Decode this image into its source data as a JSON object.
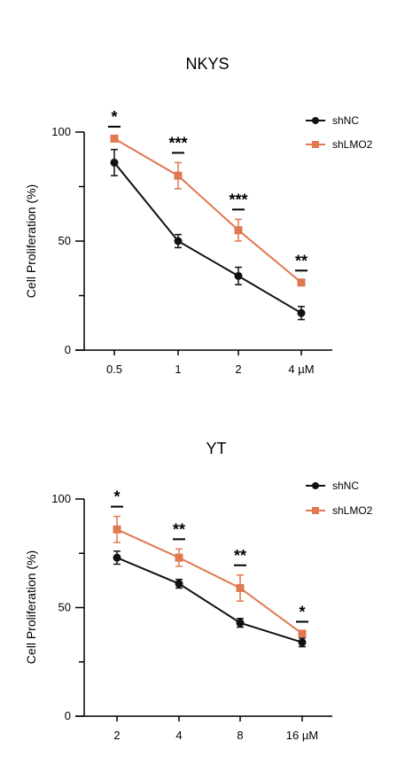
{
  "chart_data": [
    {
      "type": "line",
      "title": "NKYS",
      "ylabel": "Cell Proliferation (%)",
      "xlabel": "",
      "categories": [
        "0.5",
        "1",
        "2",
        "4 µM"
      ],
      "ylim": [
        0,
        100
      ],
      "yticks": [
        "0",
        "50",
        "100"
      ],
      "legend_position": "top-right",
      "grid": false,
      "series": [
        {
          "name": "shNC",
          "color": "#111111",
          "marker": "circle",
          "values": [
            86,
            50,
            34,
            17
          ],
          "errors": [
            6,
            3,
            4,
            3
          ]
        },
        {
          "name": "shLMO2",
          "color": "#e07850",
          "marker": "square",
          "values": [
            97,
            80,
            55,
            31
          ],
          "errors": [
            1,
            6,
            5,
            1
          ]
        }
      ],
      "significance": [
        "*",
        "***",
        "***",
        "**"
      ]
    },
    {
      "type": "line",
      "title": "YT",
      "ylabel": "Cell Proliferation (%)",
      "xlabel": "",
      "categories": [
        "2",
        "4",
        "8",
        "16 µM"
      ],
      "ylim": [
        0,
        100
      ],
      "yticks": [
        "0",
        "50",
        "100"
      ],
      "legend_position": "top-right",
      "grid": false,
      "series": [
        {
          "name": "shNC",
          "color": "#111111",
          "marker": "circle",
          "values": [
            73,
            61,
            43,
            34
          ],
          "errors": [
            3,
            2,
            2,
            2
          ]
        },
        {
          "name": "shLMO2",
          "color": "#e07850",
          "marker": "square",
          "values": [
            86,
            73,
            59,
            38
          ],
          "errors": [
            6,
            4,
            6,
            1
          ]
        }
      ],
      "significance": [
        "*",
        "**",
        "**",
        "*"
      ]
    }
  ]
}
